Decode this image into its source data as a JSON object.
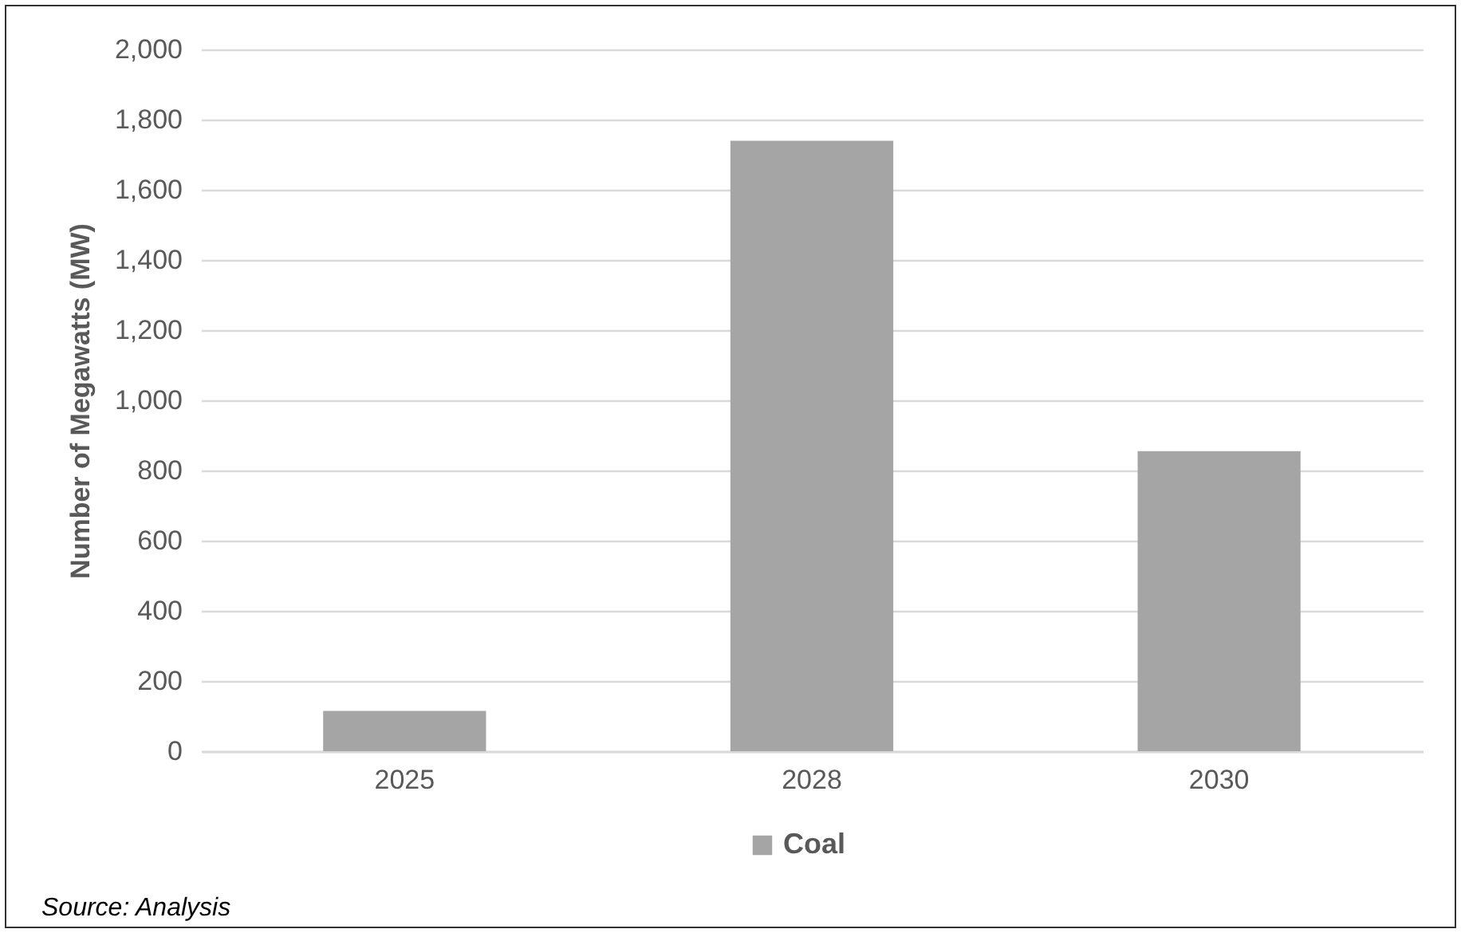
{
  "chart_data": {
    "type": "bar",
    "ylabel": "Number of Megawatts (MW)",
    "categories": [
      "2025",
      "2028",
      "2030"
    ],
    "series": [
      {
        "name": "Coal",
        "color": "#a5a5a5",
        "values": [
          115,
          1740,
          855
        ]
      }
    ],
    "ylim": [
      0,
      2000
    ],
    "yticks": [
      0,
      200,
      400,
      600,
      800,
      {
        "value": 1000,
        "label": "1,000"
      },
      {
        "value": 1200,
        "label": "1,200"
      },
      {
        "value": 1400,
        "label": "1,400"
      },
      {
        "value": 1600,
        "label": "1,600"
      },
      {
        "value": 1800,
        "label": "1,800"
      },
      {
        "value": 2000,
        "label": "2,000"
      }
    ],
    "grid": "y",
    "legend": "bottom",
    "annotations": [
      "Source: Analysis"
    ]
  }
}
